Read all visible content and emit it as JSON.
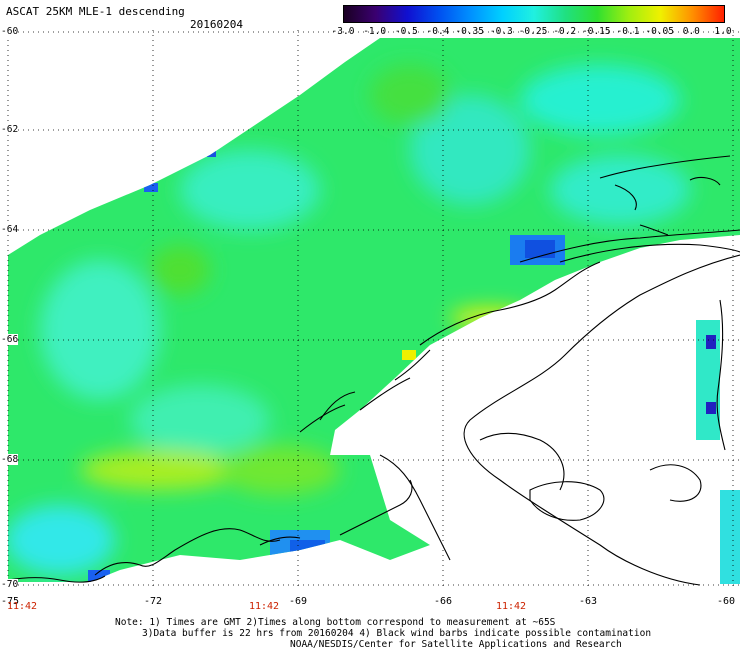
{
  "header": {
    "title": "ASCAT 25KM MLE-1 descending",
    "date": "20160204"
  },
  "colorbar": {
    "labels": [
      "-3.0",
      "-1.0",
      "-0.5",
      "-0.4",
      "-0.35",
      "-0.3",
      "-0.25",
      "-0.2",
      "-0.15",
      "-0.1",
      "-0.05",
      "0.0",
      "1.0"
    ],
    "colors": [
      "#1a0022",
      "#3a0070",
      "#1010d0",
      "#0050f0",
      "#0090ff",
      "#00d0ff",
      "#20f0e0",
      "#20e080",
      "#30e030",
      "#a0ee10",
      "#f0f000",
      "#ff9000",
      "#ff2000"
    ]
  },
  "map": {
    "lat_labels": [
      "-60",
      "-62",
      "-64",
      "-66",
      "-68",
      "-70"
    ],
    "lon_labels": [
      "-75",
      "-72",
      "-69",
      "-66",
      "-63",
      "-60"
    ],
    "time_labels": [
      "11:42",
      "11:42",
      "11:42"
    ],
    "ocean_color": "#22e870",
    "land_color": "#ffffff",
    "coast_color": "#000000",
    "grid_color": "#000000"
  },
  "notes": {
    "line1": "Note: 1) Times are GMT 2)Times along bottom correspond to measurement at ~65S",
    "line2": "3)Data buffer is 22 hrs from 20160204 4) Black wind barbs indicate possible contamination",
    "line3": "NOAA/NESDIS/Center for Satellite Applications and Research"
  }
}
